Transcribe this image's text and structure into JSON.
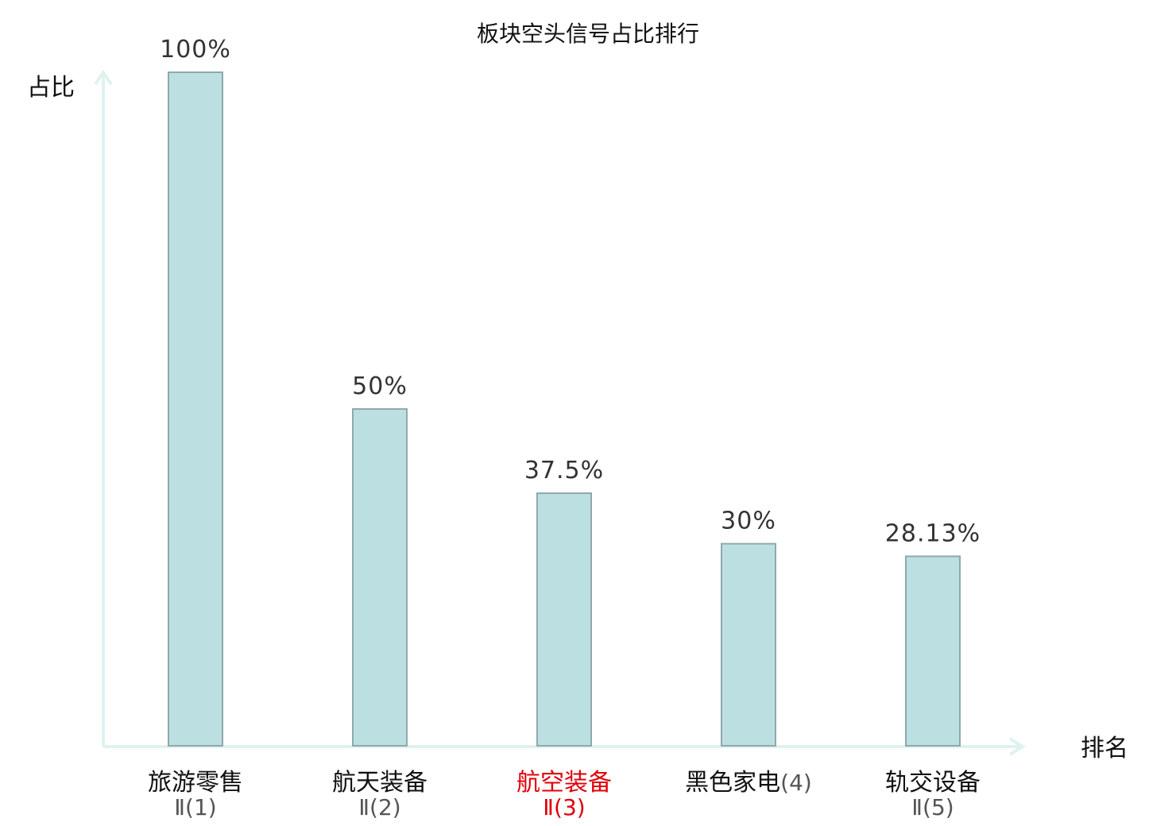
{
  "chart_data": {
    "type": "bar",
    "title": "板块空头信号占比排行",
    "ylabel": "占比",
    "xlabel": "排名",
    "ylim": [
      0,
      100
    ],
    "value_unit": "%",
    "categories": [
      {
        "name": "旅游零售",
        "suffix": "Ⅱ(1)",
        "highlight": false
      },
      {
        "name": "航天装备",
        "suffix": "Ⅱ(2)",
        "highlight": false
      },
      {
        "name": "航空装备",
        "suffix": "Ⅱ(3)",
        "highlight": true
      },
      {
        "name": "黑色家电",
        "suffix": "(4)",
        "highlight": false
      },
      {
        "name": "轨交设备",
        "suffix": "Ⅱ(5)",
        "highlight": false
      }
    ],
    "values": [
      100,
      50,
      37.5,
      30,
      28.13
    ],
    "value_labels": [
      "100%",
      "50%",
      "37.5%",
      "30%",
      "28.13%"
    ],
    "colors": {
      "bar_fill": "#bce0e2",
      "bar_stroke": "#8fa9aa",
      "axis": "#dff2ef",
      "highlight_text": "#e0000a"
    },
    "grid": false,
    "legend": "none"
  }
}
